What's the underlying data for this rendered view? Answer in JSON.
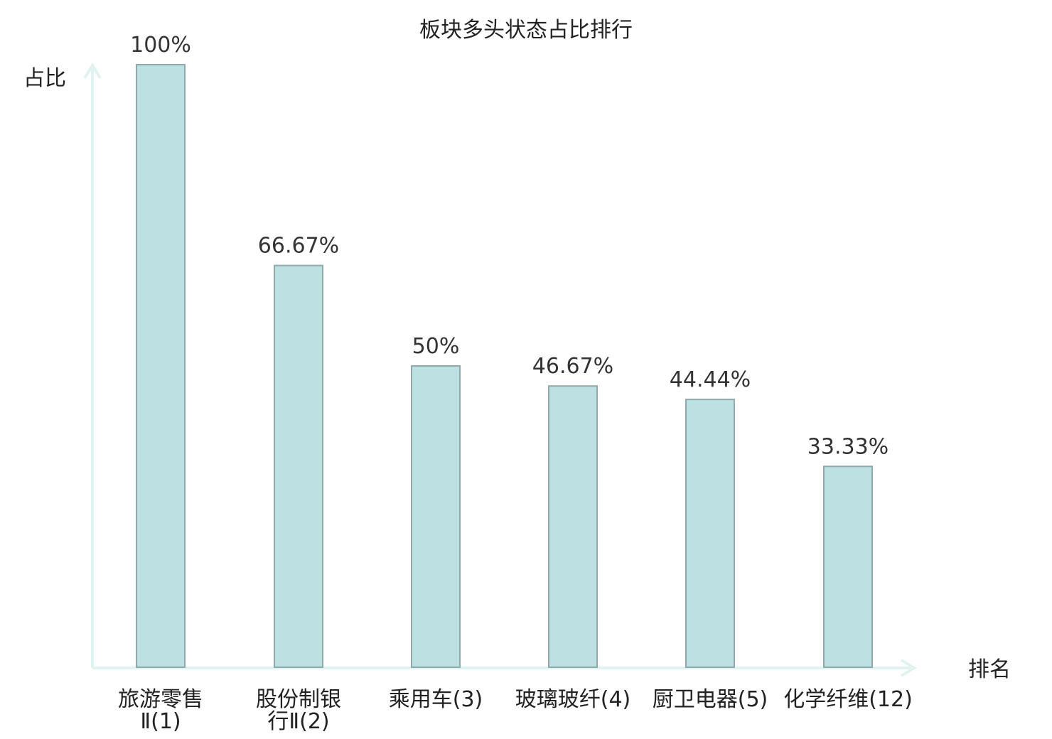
{
  "chart_data": {
    "type": "bar",
    "title": "板块多头状态占比排行",
    "ylabel": "占比",
    "xlabel": "排名",
    "ylim": [
      0,
      100
    ],
    "grid": false,
    "categories": [
      {
        "name": "旅游零售Ⅱ",
        "rank": "(1)",
        "highlight": false
      },
      {
        "name": "股份制银行Ⅱ",
        "rank": "(2)",
        "highlight": false
      },
      {
        "name": "乘用车",
        "rank": "(3)",
        "highlight": false
      },
      {
        "name": "玻璃玻纤",
        "rank": "(4)",
        "highlight": false
      },
      {
        "name": "厨卫电器",
        "rank": "(5)",
        "highlight": false
      },
      {
        "name": "化学纤维",
        "rank": "(12)",
        "highlight": true
      }
    ],
    "values": [
      100,
      66.67,
      50,
      46.67,
      44.44,
      33.33
    ],
    "value_labels": [
      "100%",
      "66.67%",
      "50%",
      "46.67%",
      "44.44%",
      "33.33%"
    ]
  },
  "colors": {
    "bar_fill": "#bde0e3",
    "bar_stroke": "#8fa9ac",
    "axis": "#e0f3f0",
    "text": "#222222",
    "highlight": "#e0201d"
  }
}
